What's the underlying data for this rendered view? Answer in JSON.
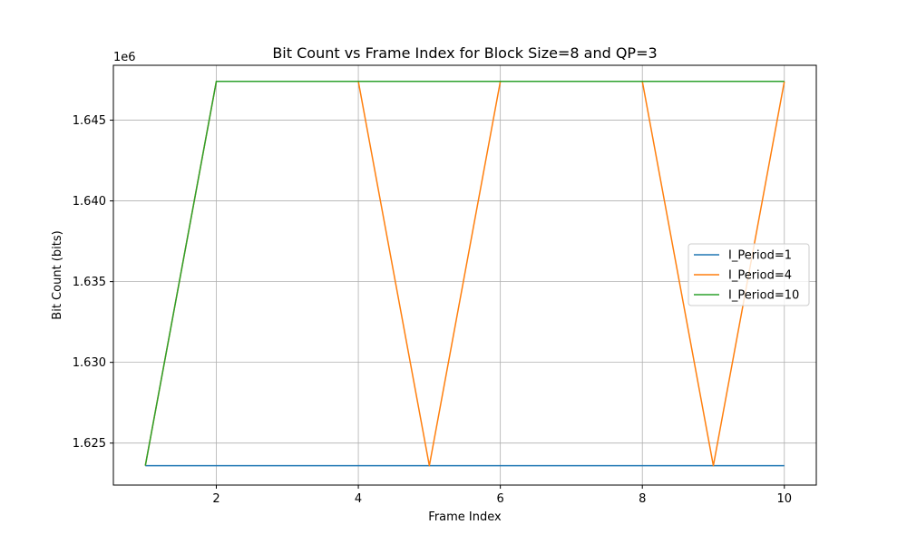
{
  "chart_data": {
    "type": "line",
    "title": "Bit Count vs Frame Index for Block Size=8 and QP=3",
    "xlabel": "Frame Index",
    "ylabel": "Bit Count (bits)",
    "y_offset_label": "1e6",
    "x": [
      1,
      2,
      3,
      4,
      5,
      6,
      7,
      8,
      9,
      10
    ],
    "xlim": [
      0.55,
      10.45
    ],
    "ylim": [
      1.6224,
      1.6484
    ],
    "xticks": [
      2,
      4,
      6,
      8,
      10
    ],
    "xtick_labels": [
      "2",
      "4",
      "6",
      "8",
      "10"
    ],
    "yticks": [
      1.625,
      1.63,
      1.635,
      1.64,
      1.645
    ],
    "ytick_labels": [
      "1.625",
      "1.630",
      "1.635",
      "1.640",
      "1.645"
    ],
    "grid": true,
    "legend_position": "center-right",
    "series": [
      {
        "name": "I_Period=1",
        "color": "#1f77b4",
        "values": [
          1.6236,
          1.6236,
          1.6236,
          1.6236,
          1.6236,
          1.6236,
          1.6236,
          1.6236,
          1.6236,
          1.6236
        ]
      },
      {
        "name": "I_Period=4",
        "color": "#ff7f0e",
        "values": [
          1.6236,
          1.6474,
          1.6474,
          1.6474,
          1.6236,
          1.6474,
          1.6474,
          1.6474,
          1.6236,
          1.6474
        ]
      },
      {
        "name": "I_Period=10",
        "color": "#2ca02c",
        "values": [
          1.6236,
          1.6474,
          1.6474,
          1.6474,
          1.6474,
          1.6474,
          1.6474,
          1.6474,
          1.6474,
          1.6474
        ]
      }
    ]
  }
}
